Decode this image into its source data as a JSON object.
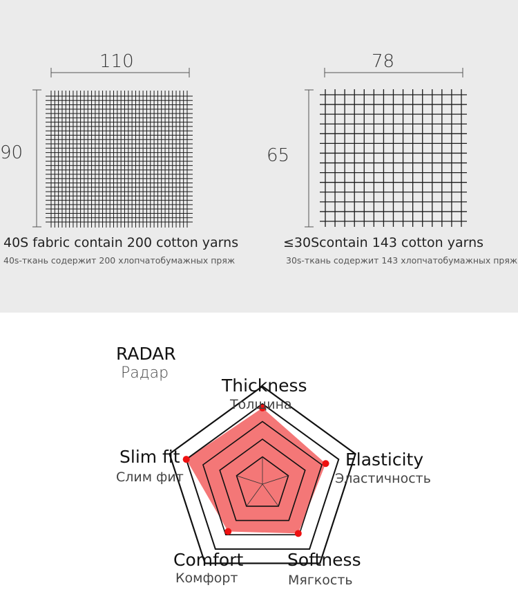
{
  "fabric_panels": [
    {
      "width_label": "110",
      "height_label": "90",
      "caption": "40S fabric contain 200 cotton yarns",
      "subcaption": "40s-ткань содержит 200 хлопчатобумажных пряж"
    },
    {
      "width_label": "78",
      "height_label": "65",
      "caption": "≤30Scontain 143 cotton yarns",
      "subcaption": "30s-ткань содержит 143 хлопчатобумажных пряж"
    }
  ],
  "radar": {
    "title": "RADAR",
    "subtitle": "Радар",
    "fill_color": "#f47777",
    "point_color": "#ee1111",
    "axes": [
      {
        "label": "Thickness",
        "sublabel": "Толщина",
        "value": 0.95
      },
      {
        "label": "Elasticity",
        "sublabel": "Эластичность",
        "value": 0.83
      },
      {
        "label": "Softness",
        "sublabel": "Мягкость",
        "value": 0.76
      },
      {
        "label": "Comfort",
        "sublabel": "Комфорт",
        "value": 0.73
      },
      {
        "label": "Slim fit",
        "sublabel": "Слим фит",
        "value": 1.0
      }
    ]
  }
}
